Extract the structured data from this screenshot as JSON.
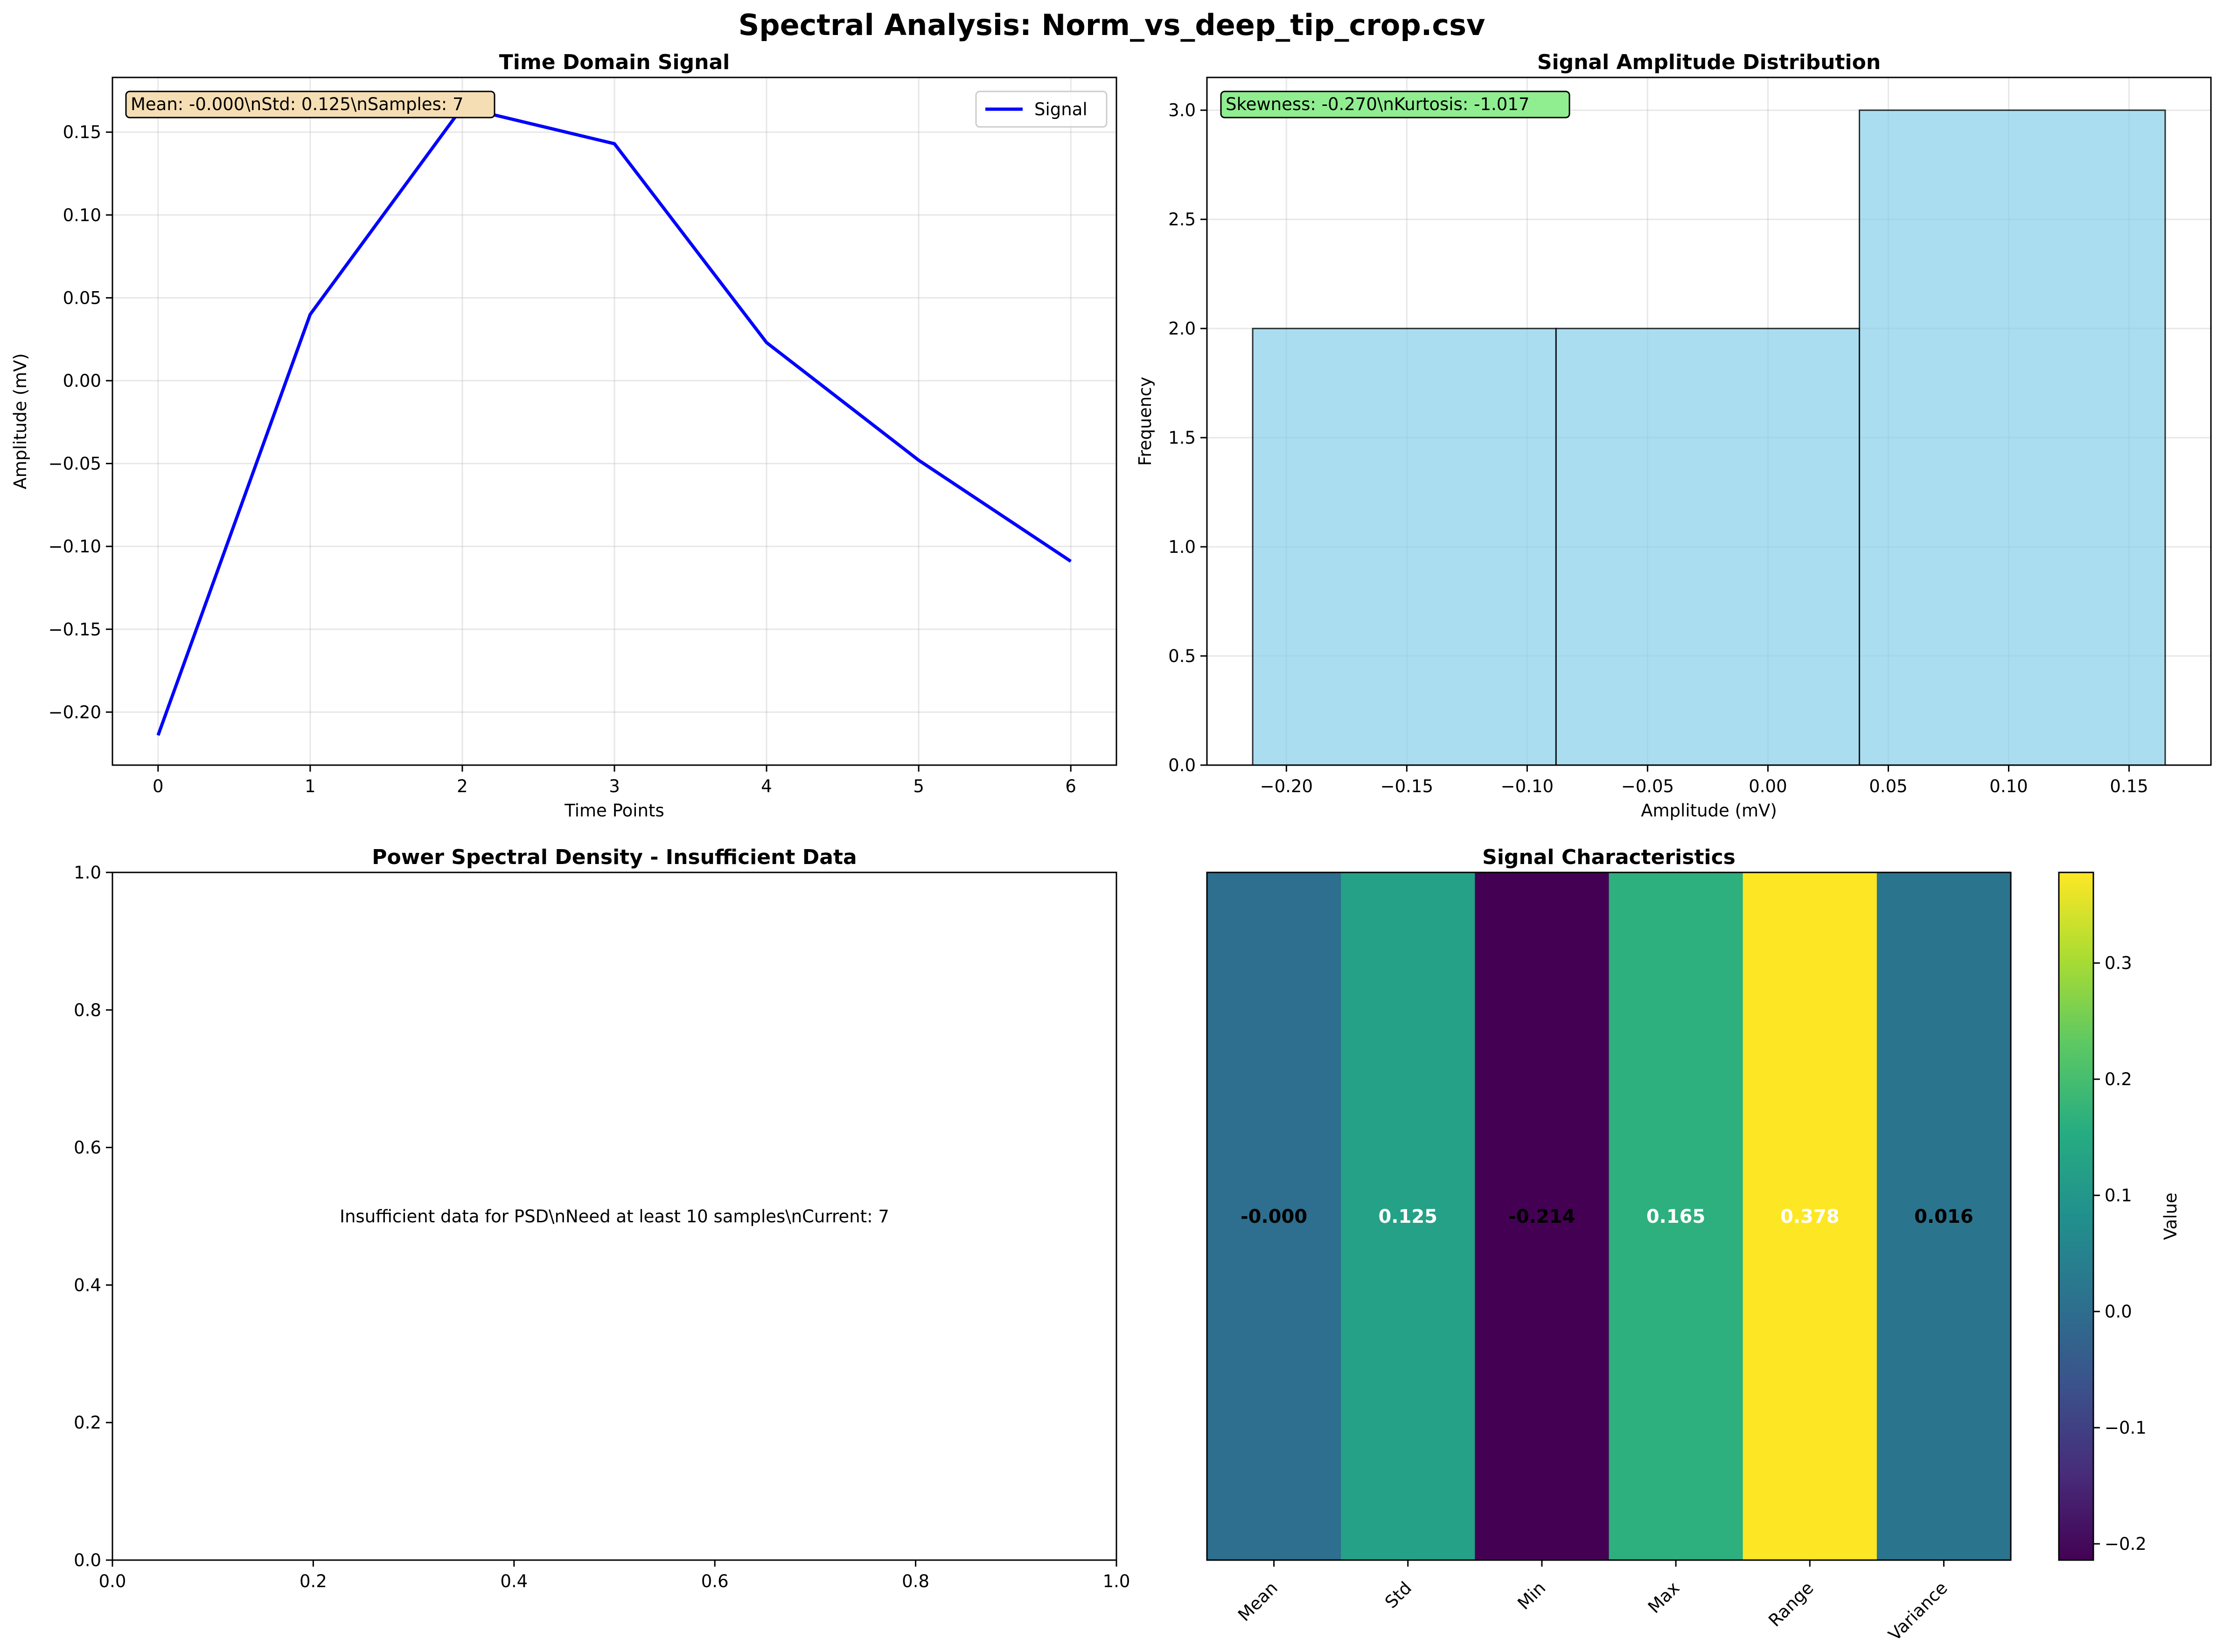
{
  "figure": {
    "title": "Spectral Analysis: Norm_vs_deep_tip_crop.csv"
  },
  "chart_data": [
    {
      "id": "time",
      "type": "line",
      "title": "Time Domain Signal",
      "xlabel": "Time Points",
      "ylabel": "Amplitude (mV)",
      "xlim": [
        -0.3,
        6.3
      ],
      "ylim": [
        -0.232,
        0.183
      ],
      "xticks": [
        0,
        1,
        2,
        3,
        4,
        5,
        6
      ],
      "yticks": [
        -0.2,
        -0.15,
        -0.1,
        -0.05,
        0.0,
        0.05,
        0.1,
        0.15
      ],
      "grid": true,
      "legend_position": "top-right",
      "series": [
        {
          "name": "Signal",
          "color": "#0000ff",
          "x": [
            0,
            1,
            2,
            3,
            4,
            5,
            6
          ],
          "y": [
            -0.214,
            0.04,
            0.165,
            0.143,
            0.023,
            -0.048,
            -0.109
          ]
        }
      ],
      "annotation": "Mean: -0.000\\nStd: 0.125\\nSamples: 7",
      "annotation_bg": "#f5deb3"
    },
    {
      "id": "hist",
      "type": "bar",
      "title": "Signal Amplitude Distribution",
      "xlabel": "Amplitude (mV)",
      "ylabel": "Frequency",
      "xlim": [
        -0.233,
        0.184
      ],
      "ylim": [
        0,
        3.15
      ],
      "xticks": [
        -0.2,
        -0.15,
        -0.1,
        -0.05,
        0.0,
        0.05,
        0.1,
        0.15
      ],
      "yticks": [
        0.0,
        0.5,
        1.0,
        1.5,
        2.0,
        2.5,
        3.0
      ],
      "grid": true,
      "bins": [
        {
          "x0": -0.214,
          "x1": -0.088,
          "count": 2
        },
        {
          "x0": -0.088,
          "x1": 0.038,
          "count": 2
        },
        {
          "x0": 0.038,
          "x1": 0.165,
          "count": 3
        }
      ],
      "bar_color": "#87ceeb",
      "annotation": "Skewness: -0.270\\nKurtosis: -1.017",
      "annotation_bg": "#90ee90"
    },
    {
      "id": "psd",
      "type": "line",
      "title": "Power Spectral Density - Insufficient Data",
      "xlim": [
        0,
        1
      ],
      "ylim": [
        0,
        1
      ],
      "xticks": [
        0.0,
        0.2,
        0.4,
        0.6,
        0.8,
        1.0
      ],
      "yticks": [
        0.0,
        0.2,
        0.4,
        0.6,
        0.8,
        1.0
      ],
      "grid": false,
      "series": [],
      "message": "Insufficient data for PSD\\nNeed at least 10 samples\\nCurrent: 7"
    },
    {
      "id": "heat",
      "type": "heatmap",
      "title": "Signal Characteristics",
      "categories": [
        "Mean",
        "Std",
        "Min",
        "Max",
        "Range",
        "Variance"
      ],
      "values": [
        -0.0,
        0.125,
        -0.214,
        0.165,
        0.378,
        0.016
      ],
      "labels": [
        "-0.000",
        "0.125",
        "-0.214",
        "0.165",
        "0.378",
        "0.016"
      ],
      "colorscale": "viridis",
      "vmin": -0.214,
      "vmax": 0.378,
      "colorbar_label": "Value",
      "colorbar_ticks": [
        -0.2,
        -0.1,
        0.0,
        0.1,
        0.2,
        0.3
      ]
    }
  ]
}
